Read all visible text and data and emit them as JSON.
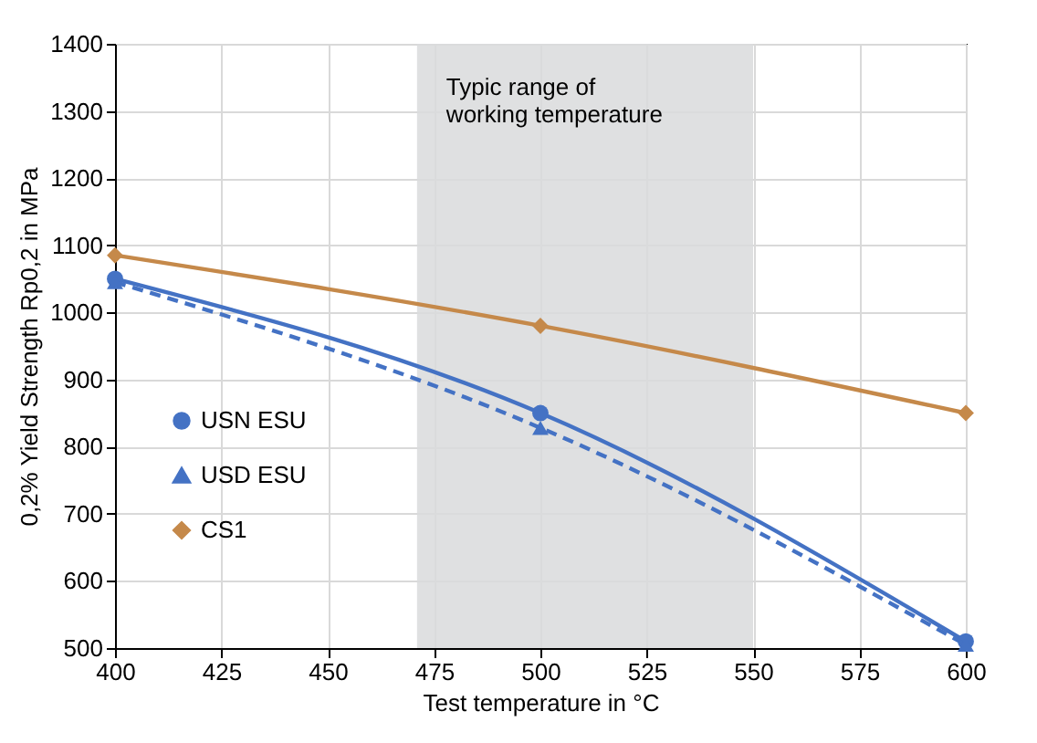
{
  "chart_data": {
    "type": "line",
    "xlabel": "Test temperature in °C",
    "ylabel": "0,2% Yield Strength Rp0,2 in MPa",
    "x": [
      400,
      500,
      600
    ],
    "series": [
      {
        "name": "USN ESU",
        "color": "#4472c4",
        "values": [
          1050,
          850,
          510
        ],
        "marker": "circle",
        "line_style": "solid"
      },
      {
        "name": "USD ESU",
        "color": "#4472c4",
        "values": [
          1045,
          828,
          505
        ],
        "marker": "triangle",
        "line_style": "dashed"
      },
      {
        "name": "CS1",
        "color": "#c5894a",
        "values": [
          1085,
          980,
          850
        ],
        "marker": "diamond",
        "line_style": "solid"
      }
    ],
    "xlim": [
      400,
      600
    ],
    "xticks": [
      400,
      425,
      450,
      475,
      500,
      525,
      550,
      575,
      600
    ],
    "ylim": [
      500,
      1400
    ],
    "yticks": [
      500,
      600,
      700,
      800,
      900,
      1000,
      1100,
      1200,
      1300,
      1400
    ],
    "bands": [
      {
        "axis": "x",
        "from": 471,
        "to": 550,
        "label": "Typic range of\nworking temperature",
        "color": "#d9dadc"
      }
    ],
    "grid": true,
    "legend": "left"
  }
}
